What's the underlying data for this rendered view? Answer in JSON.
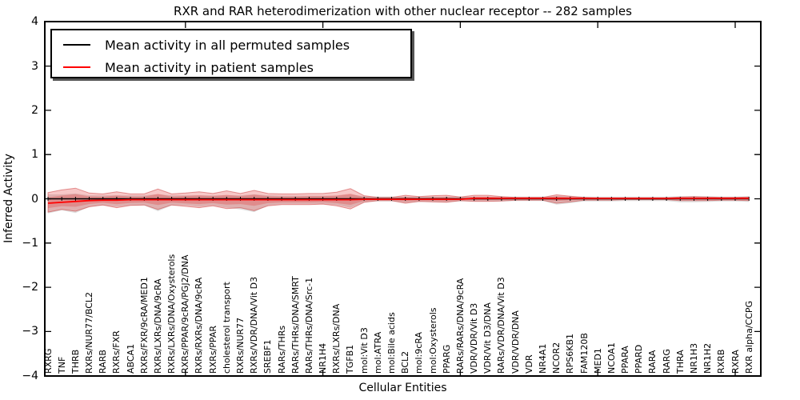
{
  "title": "RXR and RAR heterodimerization with other nuclear receptor -- 282 samples",
  "axes": {
    "ylabel": "Inferred Activity",
    "xlabel": "Cellular Entities",
    "yticks": [
      "4",
      "3",
      "2",
      "1",
      "0",
      "−1",
      "−2",
      "−3",
      "−4"
    ],
    "ylim": [
      -4,
      4
    ]
  },
  "legend": {
    "items": [
      {
        "label": "Mean activity in all permuted samples",
        "color": "#000000"
      },
      {
        "label": "Mean activity in patient samples",
        "color": "#ff0000"
      }
    ]
  },
  "chart_data": {
    "type": "line",
    "title": "RXR and RAR heterodimerization with other nuclear receptor -- 282 samples",
    "xlabel": "Cellular Entities",
    "ylabel": "Inferred Activity",
    "ylim": [
      -4,
      4
    ],
    "grid": false,
    "legend_position": "upper left",
    "xticks_every": 10,
    "categories": [
      "RXRG",
      "TNF",
      "THRB",
      "RXRs/NUR77/BCL2",
      "RARB",
      "RXRs/FXR",
      "ABCA1",
      "RXRs/FXR/9cRA/MED1",
      "RXRs/LXRs/DNA/9cRA",
      "RXRs/LXRs/DNA/Oxysterols",
      "RXRs/PPAR/9cRA/PGJ2/DNA",
      "RXRs/RXRs/DNA/9cRA",
      "RXRs/PPAR",
      "cholesterol transport",
      "RXRs/NUR77",
      "RXRs/VDR/DNA/Vit D3",
      "SREBF1",
      "RARs/THRs",
      "RARs/THRs/DNA/SMRT",
      "RARs/THRs/DNA/Src-1",
      "NR1H4",
      "RXRs/LXRs/DNA",
      "TGFB1",
      "mol:Vit D3",
      "mol:ATRA",
      "mol:Bile acids",
      "BCL2",
      "mol:9cRA",
      "mol:Oxysterols",
      "PPARG",
      "RARs/RARs/DNA/9cRA",
      "VDR/VDR/Vit D3",
      "VDR/Vit D3/DNA",
      "RARs/VDR/DNA/Vit D3",
      "VDR/VDR/DNA",
      "VDR",
      "NR4A1",
      "NCOR2",
      "RPS6KB1",
      "FAM120B",
      "MED1",
      "NCOA1",
      "PPARA",
      "PPARD",
      "RARA",
      "RARG",
      "THRA",
      "NR1H3",
      "NR1H2",
      "RXRB",
      "RXRA",
      "RXR alpha/CCPG"
    ],
    "series": [
      {
        "name": "Mean activity in all permuted samples",
        "color": "#000000",
        "marker": "|",
        "values": [
          0,
          0,
          0,
          0,
          0,
          0,
          0,
          0,
          0,
          0,
          0,
          0,
          0,
          0,
          0,
          0,
          0,
          0,
          0,
          0,
          0,
          0,
          0,
          0,
          0,
          0,
          0,
          0,
          0,
          0,
          0,
          0,
          0,
          0,
          0,
          0,
          0,
          0,
          0,
          0,
          0,
          0,
          0,
          0,
          0,
          0,
          0,
          0,
          0,
          0,
          0,
          0
        ]
      },
      {
        "name": "Mean activity in patient samples",
        "color": "#ff0000",
        "marker": "none",
        "values": [
          -0.1,
          -0.08,
          -0.06,
          -0.04,
          -0.03,
          -0.03,
          -0.02,
          -0.02,
          -0.02,
          -0.02,
          -0.02,
          -0.02,
          -0.02,
          -0.02,
          -0.02,
          -0.02,
          -0.02,
          -0.02,
          -0.02,
          -0.02,
          -0.02,
          -0.02,
          -0.02,
          -0.01,
          -0.01,
          -0.01,
          -0.01,
          -0.01,
          -0.01,
          -0.01,
          -0.01,
          0.01,
          0.01,
          0.01,
          0.01,
          0.01,
          0.01,
          0.01,
          0.01,
          0.01,
          0.01,
          0.01,
          0.01,
          0.01,
          0.01,
          0.01,
          0.01,
          0.01,
          0.01,
          0.01,
          0.01,
          0.01
        ]
      }
    ],
    "bands": [
      {
        "name": "permuted samples spread",
        "color": "#999999",
        "opacity": 0.32,
        "center_series": 0,
        "upper": [
          0.1,
          0.1,
          0.12,
          0.08,
          0.08,
          0.08,
          0.08,
          0.08,
          0.1,
          0.08,
          0.08,
          0.08,
          0.08,
          0.08,
          0.08,
          0.1,
          0.08,
          0.07,
          0.07,
          0.07,
          0.07,
          0.07,
          0.1,
          0.06,
          0.05,
          0.05,
          0.05,
          0.05,
          0.05,
          0.05,
          0.05,
          0.05,
          0.05,
          0.05,
          0.05,
          0.05,
          0.05,
          0.07,
          0.06,
          0.05,
          0.05,
          0.05,
          0.05,
          0.05,
          0.05,
          0.05,
          0.06,
          0.06,
          0.06,
          0.05,
          0.05,
          0.06
        ],
        "lower": [
          -0.33,
          -0.26,
          -0.32,
          -0.18,
          -0.15,
          -0.18,
          -0.15,
          -0.15,
          -0.28,
          -0.15,
          -0.15,
          -0.18,
          -0.15,
          -0.2,
          -0.24,
          -0.3,
          -0.15,
          -0.12,
          -0.12,
          -0.12,
          -0.12,
          -0.14,
          -0.2,
          -0.08,
          -0.06,
          -0.06,
          -0.09,
          -0.07,
          -0.07,
          -0.08,
          -0.06,
          -0.06,
          -0.06,
          -0.06,
          -0.05,
          -0.05,
          -0.05,
          -0.13,
          -0.1,
          -0.06,
          -0.06,
          -0.06,
          -0.05,
          -0.05,
          -0.05,
          -0.05,
          -0.08,
          -0.08,
          -0.07,
          -0.06,
          -0.06,
          -0.07
        ]
      },
      {
        "name": "patient samples spread",
        "color": "#e03030",
        "opacity": 0.27,
        "edge_color": "#cc3333",
        "center_series": 1,
        "inner_scale": 0.55,
        "upper": [
          0.14,
          0.2,
          0.24,
          0.13,
          0.11,
          0.16,
          0.11,
          0.11,
          0.22,
          0.11,
          0.13,
          0.16,
          0.12,
          0.18,
          0.12,
          0.19,
          0.12,
          0.11,
          0.11,
          0.12,
          0.12,
          0.15,
          0.23,
          0.07,
          0.03,
          0.03,
          0.08,
          0.05,
          0.07,
          0.08,
          0.04,
          0.08,
          0.08,
          0.05,
          0.03,
          0.03,
          0.03,
          0.09,
          0.06,
          0.03,
          0.02,
          0.02,
          0.02,
          0.02,
          0.02,
          0.02,
          0.04,
          0.05,
          0.04,
          0.03,
          0.03,
          0.04
        ],
        "lower": [
          -0.3,
          -0.24,
          -0.28,
          -0.18,
          -0.14,
          -0.2,
          -0.15,
          -0.14,
          -0.24,
          -0.14,
          -0.17,
          -0.2,
          -0.16,
          -0.22,
          -0.2,
          -0.27,
          -0.16,
          -0.13,
          -0.13,
          -0.13,
          -0.12,
          -0.16,
          -0.23,
          -0.08,
          -0.04,
          -0.04,
          -0.1,
          -0.06,
          -0.07,
          -0.08,
          -0.04,
          -0.06,
          -0.06,
          -0.05,
          -0.03,
          -0.03,
          -0.03,
          -0.1,
          -0.07,
          -0.03,
          -0.03,
          -0.03,
          -0.02,
          -0.02,
          -0.02,
          -0.02,
          -0.04,
          -0.04,
          -0.04,
          -0.03,
          -0.03,
          -0.04
        ]
      }
    ]
  }
}
